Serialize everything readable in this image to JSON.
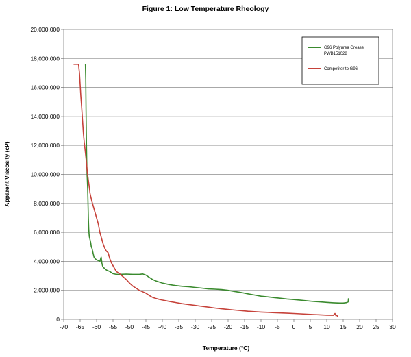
{
  "chart_data": {
    "type": "line",
    "title": "Figure 1:  Low Temperature Rheology",
    "xlabel": "Temperature (°C)",
    "ylabel": "Apparent Viscosity (cP)",
    "xlim": [
      -70,
      30
    ],
    "ylim": [
      0,
      20000000
    ],
    "grid": true,
    "legend_position": "top-right",
    "x_ticks": [
      -70,
      -65,
      -60,
      -55,
      -50,
      -45,
      -40,
      -35,
      -30,
      -25,
      -20,
      -15,
      -10,
      -5,
      0,
      5,
      10,
      15,
      20,
      25,
      30
    ],
    "x_tick_labels": [
      "-70",
      "-65",
      "-60",
      "-55",
      "-50",
      "-45",
      "-40",
      "-35",
      "-30",
      "-25",
      "-20",
      "-15",
      "-10",
      "-5",
      "0",
      "5",
      "10",
      "15",
      "20",
      "25",
      "30"
    ],
    "y_ticks": [
      0,
      2000000,
      4000000,
      6000000,
      8000000,
      10000000,
      12000000,
      14000000,
      16000000,
      18000000,
      20000000
    ],
    "y_tick_labels": [
      "0",
      "2,000,000",
      "4,000,000",
      "6,000,000",
      "8,000,000",
      "10,000,000",
      "12,000,000",
      "14,000,000",
      "16,000,000",
      "18,000,000",
      "20,000,000"
    ],
    "series": [
      {
        "name": "G96 Polyurea Grease PWB151028",
        "legend_lines": [
          "G96 Polyurea Grease",
          "PWB151028"
        ],
        "color": "#3a8a2e",
        "x": [
          -63.4,
          -63.3,
          -63.2,
          -63.1,
          -63.0,
          -62.9,
          -62.8,
          -62.7,
          -62.6,
          -62.5,
          -62.4,
          -62.3,
          -62.2,
          -62.0,
          -61.8,
          -61.6,
          -61.4,
          -61.2,
          -61.0,
          -60.8,
          -60.5,
          -60.0,
          -59.5,
          -59.0,
          -58.6,
          -58.4,
          -58.2,
          -58.0,
          -57.5,
          -57.0,
          -56.0,
          -55.0,
          -54.0,
          -53.0,
          -51.0,
          -49.0,
          -47.0,
          -46.0,
          -45.0,
          -44.0,
          -43.0,
          -42.0,
          -40.0,
          -38.0,
          -36.0,
          -34.0,
          -32.0,
          -30.0,
          -28.0,
          -26.0,
          -24.0,
          -22.0,
          -20.0,
          -18.0,
          -16.0,
          -14.0,
          -12.0,
          -10.0,
          -8.0,
          -6.0,
          -4.0,
          -2.0,
          0.0,
          2.0,
          4.0,
          6.0,
          8.0,
          10.0,
          12.0,
          14.0,
          15.0,
          16.0,
          16.5,
          16.6
        ],
        "y": [
          17600000,
          16500000,
          14500000,
          12500000,
          11000000,
          10000000,
          9500000,
          9000000,
          8000000,
          7000000,
          6300000,
          5900000,
          5700000,
          5500000,
          5300000,
          5000000,
          4900000,
          4700000,
          4500000,
          4300000,
          4200000,
          4100000,
          4050000,
          4000000,
          4300000,
          3900000,
          3700000,
          3600000,
          3500000,
          3400000,
          3300000,
          3150000,
          3100000,
          3100000,
          3120000,
          3100000,
          3100000,
          3130000,
          3050000,
          2900000,
          2750000,
          2650000,
          2500000,
          2400000,
          2330000,
          2280000,
          2250000,
          2200000,
          2150000,
          2100000,
          2080000,
          2050000,
          2000000,
          1920000,
          1850000,
          1760000,
          1680000,
          1600000,
          1550000,
          1500000,
          1450000,
          1400000,
          1360000,
          1320000,
          1270000,
          1230000,
          1200000,
          1170000,
          1140000,
          1120000,
          1120000,
          1150000,
          1200000,
          1450000
        ]
      },
      {
        "name": "Competitor to G96",
        "legend_lines": [
          "Competitor to G96"
        ],
        "color": "#c6423a",
        "x": [
          -67.0,
          -65.5,
          -65.2,
          -65.0,
          -64.8,
          -64.5,
          -64.2,
          -64.0,
          -63.8,
          -63.5,
          -63.2,
          -63.0,
          -62.8,
          -62.5,
          -62.2,
          -62.0,
          -61.5,
          -61.0,
          -60.5,
          -60.0,
          -59.5,
          -59.0,
          -58.5,
          -58.0,
          -57.5,
          -57.0,
          -56.5,
          -56.0,
          -55.5,
          -55.0,
          -54.5,
          -54.0,
          -53.0,
          -52.0,
          -51.0,
          -50.0,
          -49.0,
          -48.0,
          -47.0,
          -46.0,
          -45.0,
          -44.0,
          -43.0,
          -42.0,
          -41.0,
          -40.0,
          -38.0,
          -36.0,
          -34.0,
          -32.0,
          -30.0,
          -28.0,
          -26.0,
          -24.0,
          -22.0,
          -20.0,
          -18.0,
          -16.0,
          -14.0,
          -12.0,
          -10.0,
          -8.0,
          -6.0,
          -4.0,
          -2.0,
          0.0,
          2.0,
          4.0,
          6.0,
          8.0,
          10.0,
          12.0,
          12.5,
          12.8,
          13.0,
          13.2,
          13.4
        ],
        "y": [
          17600000,
          17600000,
          17000000,
          16200000,
          15400000,
          14500000,
          13500000,
          12800000,
          12300000,
          11700000,
          11100000,
          10600000,
          10100000,
          9600000,
          9100000,
          8700000,
          8200000,
          7800000,
          7400000,
          7000000,
          6600000,
          6000000,
          5600000,
          5200000,
          4900000,
          4700000,
          4600000,
          4200000,
          3900000,
          3700000,
          3500000,
          3300000,
          3150000,
          2950000,
          2750000,
          2500000,
          2300000,
          2150000,
          2000000,
          1900000,
          1800000,
          1650000,
          1520000,
          1440000,
          1380000,
          1330000,
          1240000,
          1160000,
          1080000,
          1020000,
          960000,
          900000,
          840000,
          780000,
          730000,
          680000,
          640000,
          600000,
          560000,
          530000,
          500000,
          480000,
          460000,
          440000,
          420000,
          400000,
          380000,
          350000,
          330000,
          310000,
          290000,
          280000,
          400000,
          250000,
          300000,
          230000,
          160000
        ]
      }
    ]
  }
}
